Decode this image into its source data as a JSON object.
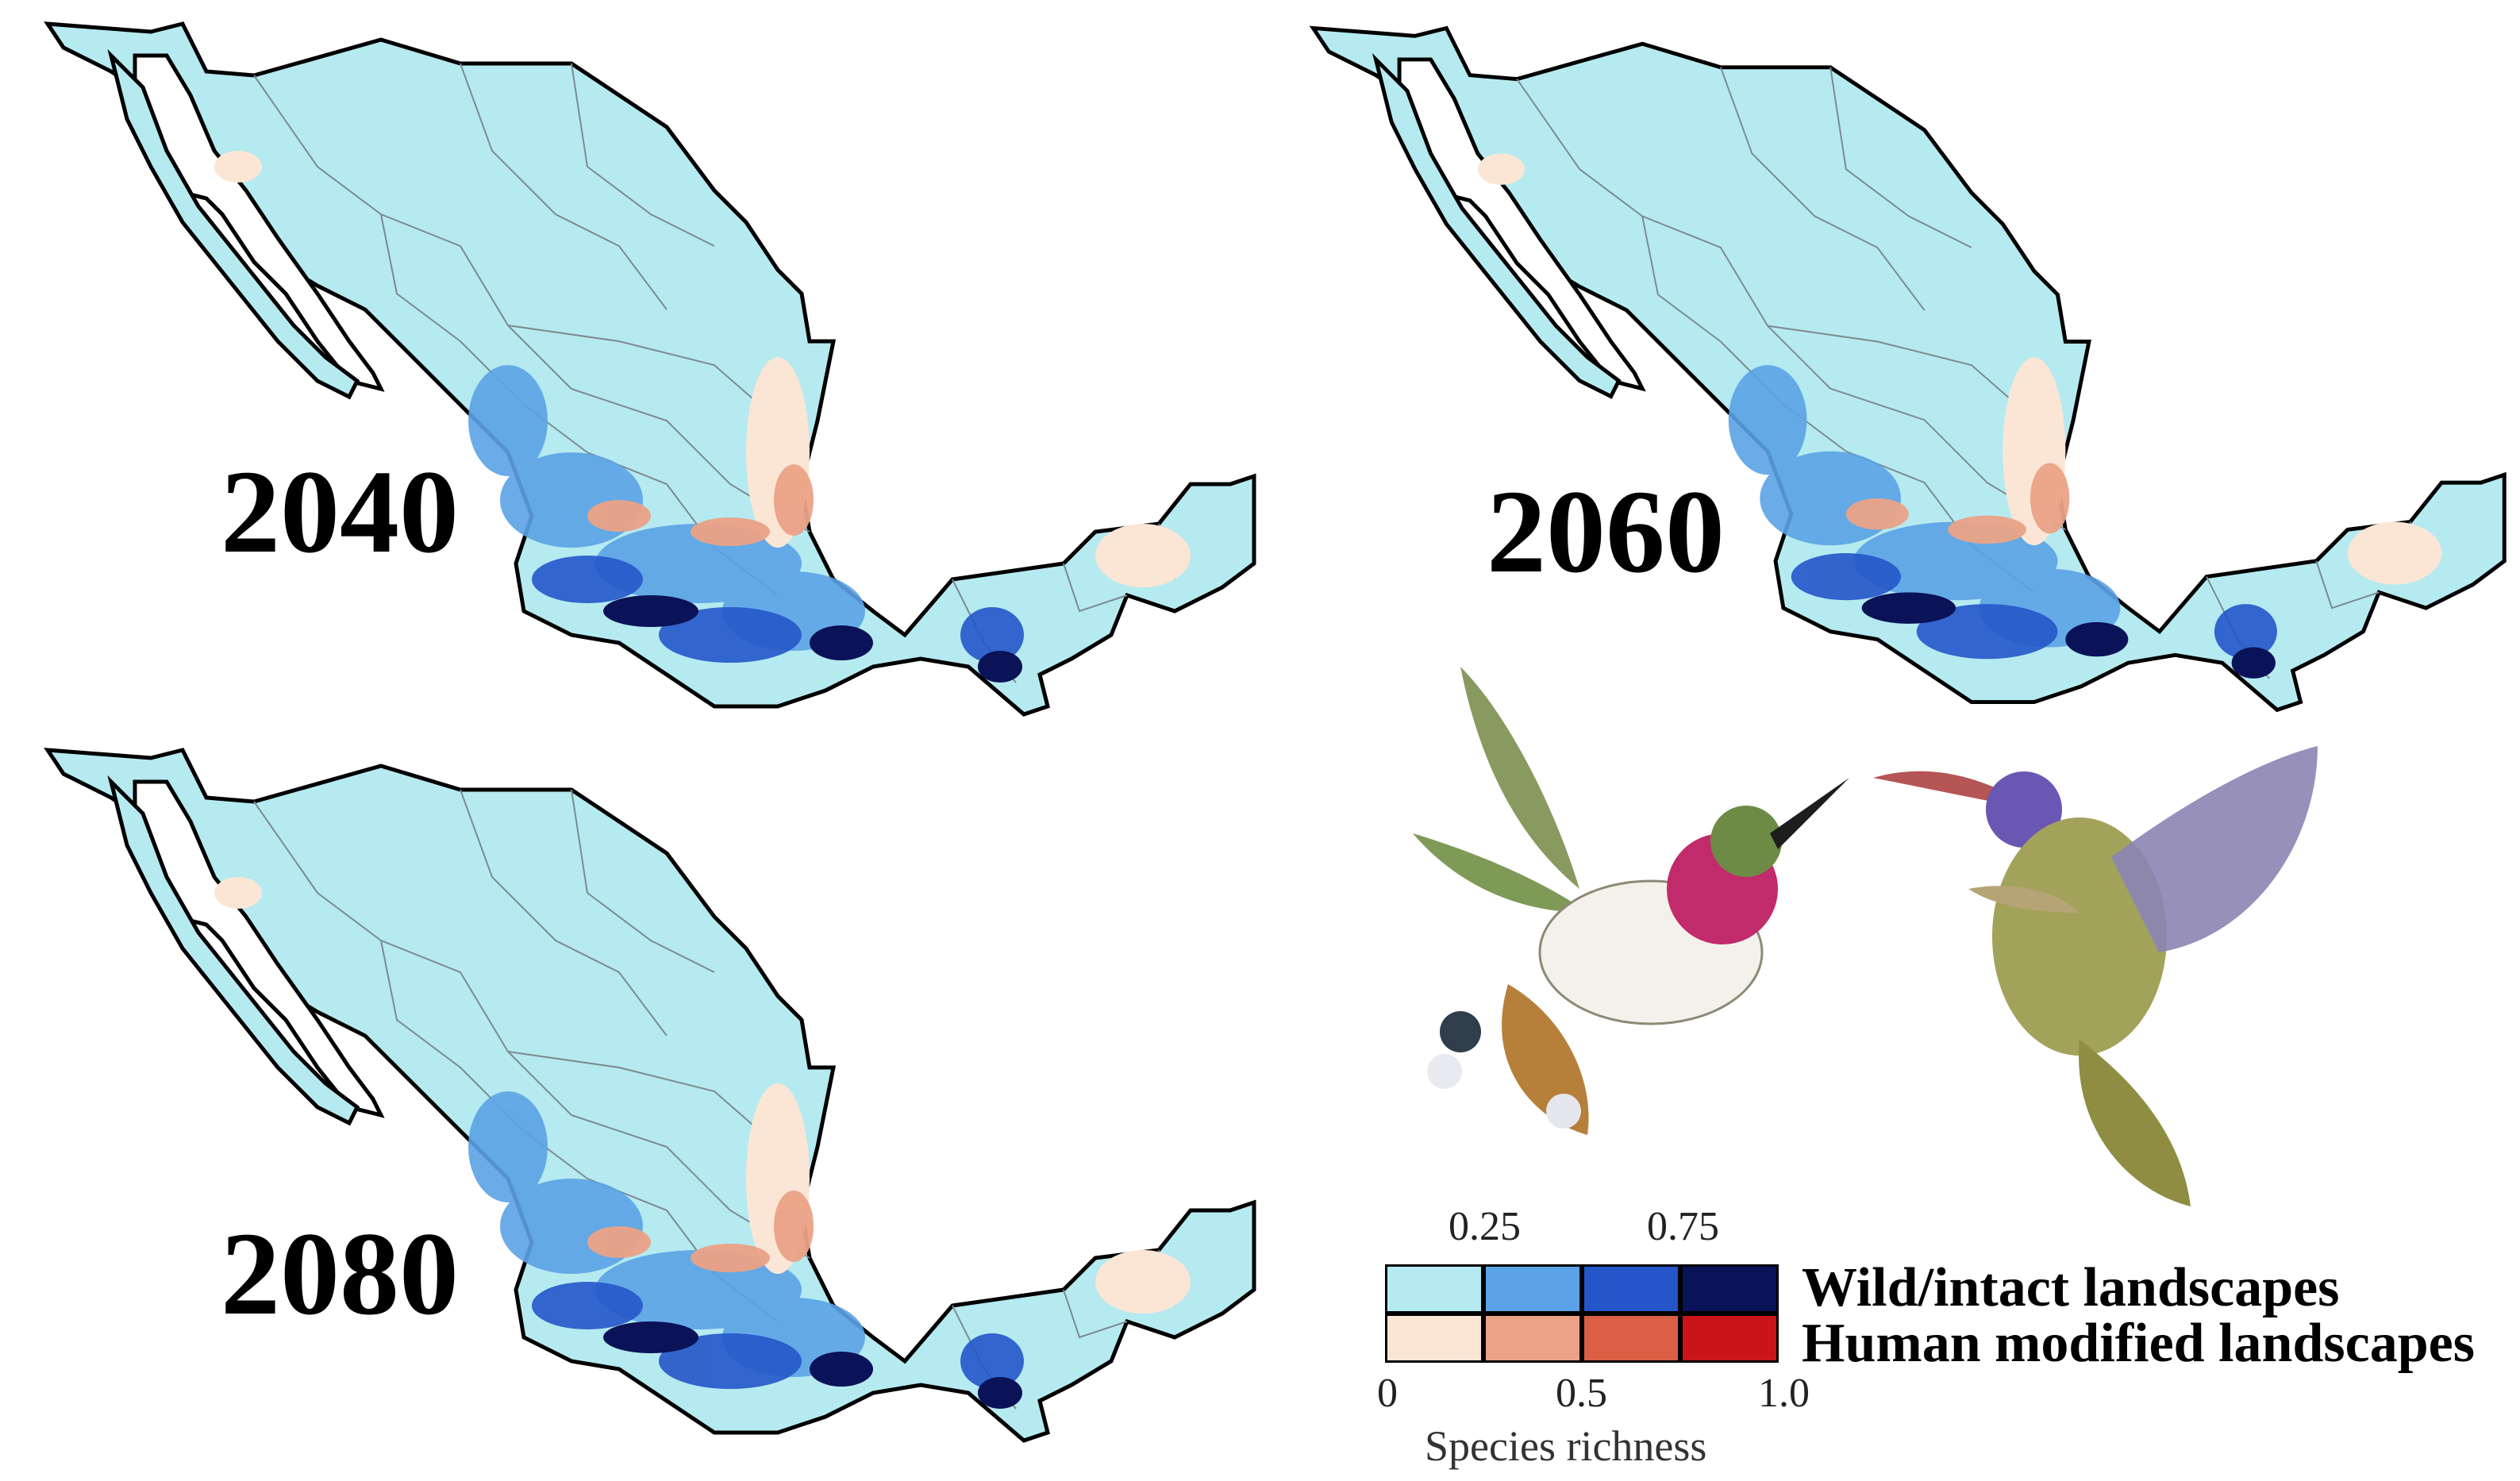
{
  "maps": [
    {
      "year": "2040"
    },
    {
      "year": "2060"
    },
    {
      "year": "2080"
    }
  ],
  "colors": {
    "wild": [
      "#b5eaf0",
      "#5ba3e6",
      "#2456c9",
      "#0a1258"
    ],
    "human": [
      "#fbe6d6",
      "#eba286",
      "#db5f45",
      "#c9141a"
    ],
    "border": "#000000",
    "state_lines": "#7d8a92"
  },
  "legend": {
    "top_ticks": [
      "0.25",
      "0.75"
    ],
    "bottom_ticks": [
      "0",
      "0.5",
      "1.0"
    ],
    "row_wild": "Wild/intact landscapes",
    "row_human": "Human modified landscapes",
    "axis_title": "Species richness"
  },
  "illustrations": [
    "hummingbird-magenta-throat",
    "hummingbird-violet-crown"
  ]
}
